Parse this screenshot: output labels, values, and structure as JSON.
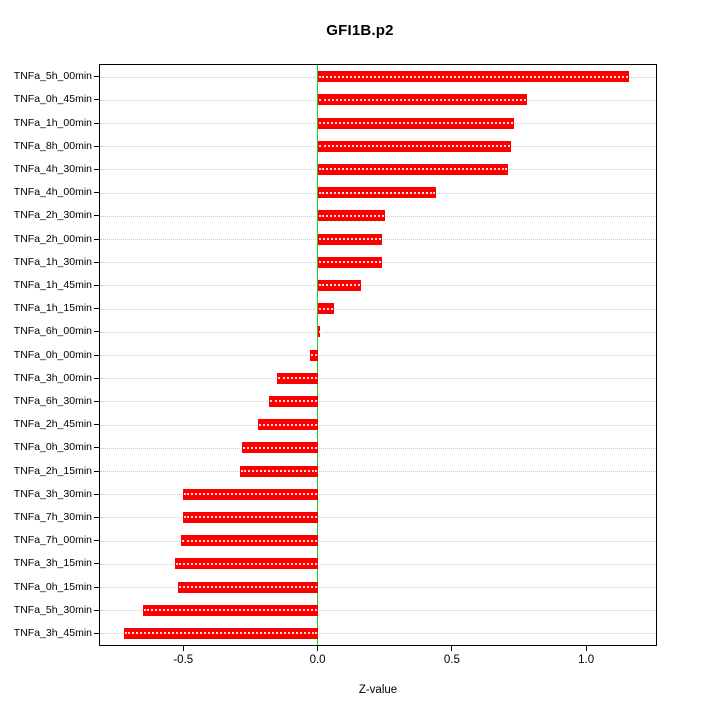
{
  "colors": {
    "bar": "#fa0000",
    "zero_line": "#19cf19",
    "grid": "#c9c9c9",
    "frame": "#000000",
    "text": "#000000"
  },
  "chart_data": {
    "type": "bar",
    "orientation": "horizontal",
    "title": "GFI1B.p2",
    "xlabel": "Z-value",
    "ylabel": "",
    "xlim": [
      -0.81,
      1.26
    ],
    "x_ticks": [
      -0.5,
      0.0,
      0.5,
      1.0
    ],
    "x_tick_labels": [
      "-0.5",
      "0.0",
      "0.5",
      "1.0"
    ],
    "grid": true,
    "zero_line": true,
    "legend": false,
    "categories": [
      "TNFa_5h_00min",
      "TNFa_0h_45min",
      "TNFa_1h_00min",
      "TNFa_8h_00min",
      "TNFa_4h_30min",
      "TNFa_4h_00min",
      "TNFa_2h_30min",
      "TNFa_2h_00min",
      "TNFa_1h_30min",
      "TNFa_1h_45min",
      "TNFa_1h_15min",
      "TNFa_6h_00min",
      "TNFa_0h_00min",
      "TNFa_3h_00min",
      "TNFa_6h_30min",
      "TNFa_2h_45min",
      "TNFa_0h_30min",
      "TNFa_2h_15min",
      "TNFa_3h_30min",
      "TNFa_7h_30min",
      "TNFa_7h_00min",
      "TNFa_3h_15min",
      "TNFa_0h_15min",
      "TNFa_5h_30min",
      "TNFa_3h_45min"
    ],
    "values": [
      1.16,
      0.78,
      0.73,
      0.72,
      0.71,
      0.44,
      0.25,
      0.24,
      0.24,
      0.16,
      0.06,
      0.01,
      -0.03,
      -0.15,
      -0.18,
      -0.22,
      -0.28,
      -0.29,
      -0.5,
      -0.5,
      -0.51,
      -0.53,
      -0.52,
      -0.65,
      -0.72
    ]
  }
}
